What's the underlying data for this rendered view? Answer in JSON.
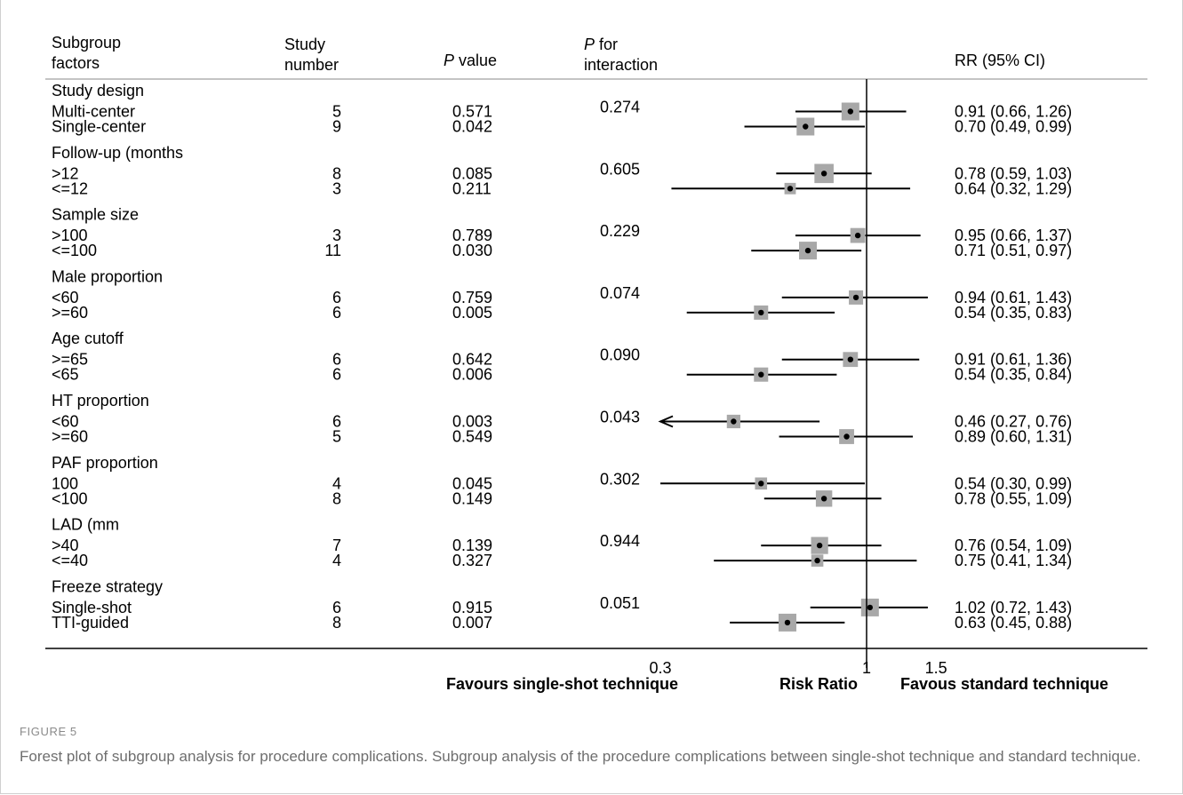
{
  "headers": {
    "factors_line1": "Subgroup",
    "factors_line2": "factors",
    "study_line1": "Study",
    "study_line2": "number",
    "pvalue_italic": "P",
    "pvalue_rest": " value",
    "pint_italic": "P",
    "pint_rest": " for",
    "pint_line2": "interaction",
    "rr": "RR (95% CI)"
  },
  "chart_data": {
    "type": "forest",
    "x_scale": "log",
    "reference_line": 1,
    "xticks": [
      {
        "value": 0.3,
        "label": "0.3"
      },
      {
        "value": 1,
        "label": "1"
      },
      {
        "value": 1.5,
        "label": "1.5"
      }
    ],
    "xlabel": "Risk Ratio",
    "favours_left": "Favours single-shot technique",
    "favours_right": "Favous standard technique",
    "groups": [
      {
        "name": "Study design",
        "p_interaction": "0.274",
        "rows": [
          {
            "label": "Multi-center",
            "n": "5",
            "p": "0.571",
            "rr": 0.91,
            "lo": 0.66,
            "hi": 1.26,
            "text": "0.91 (0.66, 1.26)",
            "weight": 0.75
          },
          {
            "label": "Single-center",
            "n": "9",
            "p": "0.042",
            "rr": 0.7,
            "lo": 0.49,
            "hi": 0.99,
            "text": "0.70 (0.49, 0.99)",
            "weight": 0.75
          }
        ]
      },
      {
        "name": "Follow-up (months",
        "p_interaction": "0.605",
        "rows": [
          {
            "label": ">12",
            "n": "8",
            "p": "0.085",
            "rr": 0.78,
            "lo": 0.59,
            "hi": 1.03,
            "text": "0.78 (0.59, 1.03)",
            "weight": 0.85
          },
          {
            "label": "<=12",
            "n": "3",
            "p": "0.211",
            "rr": 0.64,
            "lo": 0.32,
            "hi": 1.29,
            "text": "0.64 (0.32, 1.29)",
            "weight": 0.3
          }
        ]
      },
      {
        "name": "Sample size",
        "p_interaction": "0.229",
        "rows": [
          {
            "label": ">100",
            "n": "3",
            "p": "0.789",
            "rr": 0.95,
            "lo": 0.66,
            "hi": 1.37,
            "text": "0.95 (0.66, 1.37)",
            "weight": 0.55
          },
          {
            "label": "<=100",
            "n": "11",
            "p": "0.030",
            "rr": 0.71,
            "lo": 0.51,
            "hi": 0.97,
            "text": "0.71 (0.51, 0.97)",
            "weight": 0.75
          }
        ]
      },
      {
        "name": "Male proportion",
        "p_interaction": "0.074",
        "rows": [
          {
            "label": "<60",
            "n": "6",
            "p": "0.759",
            "rr": 0.94,
            "lo": 0.61,
            "hi": 1.43,
            "text": "0.94 (0.61, 1.43)",
            "weight": 0.5
          },
          {
            "label": ">=60",
            "n": "6",
            "p": "0.005",
            "rr": 0.54,
            "lo": 0.35,
            "hi": 0.83,
            "text": "0.54 (0.35, 0.83)",
            "weight": 0.5
          }
        ]
      },
      {
        "name": "Age cutoff",
        "p_interaction": "0.090",
        "rows": [
          {
            "label": ">=65",
            "n": "6",
            "p": "0.642",
            "rr": 0.91,
            "lo": 0.61,
            "hi": 1.36,
            "text": "0.91 (0.61, 1.36)",
            "weight": 0.55
          },
          {
            "label": "<65",
            "n": "6",
            "p": "0.006",
            "rr": 0.54,
            "lo": 0.35,
            "hi": 0.84,
            "text": "0.54 (0.35, 0.84)",
            "weight": 0.5
          }
        ]
      },
      {
        "name": "HT proportion",
        "p_interaction": "0.043",
        "rows": [
          {
            "label": "<60",
            "n": "6",
            "p": "0.003",
            "rr": 0.46,
            "lo": 0.27,
            "hi": 0.76,
            "text": "0.46 (0.27, 0.76)",
            "weight": 0.45,
            "arrow_left": true
          },
          {
            "label": ">=60",
            "n": "5",
            "p": "0.549",
            "rr": 0.89,
            "lo": 0.6,
            "hi": 1.31,
            "text": "0.89 (0.60, 1.31)",
            "weight": 0.55
          }
        ]
      },
      {
        "name": "PAF proportion",
        "p_interaction": "0.302",
        "rows": [
          {
            "label": "100",
            "n": "4",
            "p": "0.045",
            "rr": 0.54,
            "lo": 0.3,
            "hi": 0.99,
            "text": "0.54 (0.30, 0.99)",
            "weight": 0.35
          },
          {
            "label": "<100",
            "n": "8",
            "p": "0.149",
            "rr": 0.78,
            "lo": 0.55,
            "hi": 1.09,
            "text": "0.78 (0.55, 1.09)",
            "weight": 0.65
          }
        ]
      },
      {
        "name": "LAD (mm",
        "p_interaction": "0.944",
        "rows": [
          {
            "label": ">40",
            "n": "7",
            "p": "0.139",
            "rr": 0.76,
            "lo": 0.54,
            "hi": 1.09,
            "text": "0.76 (0.54, 1.09)",
            "weight": 0.7
          },
          {
            "label": "<=40",
            "n": "4",
            "p": "0.327",
            "rr": 0.75,
            "lo": 0.41,
            "hi": 1.34,
            "text": "0.75 (0.41, 1.34)",
            "weight": 0.35
          }
        ]
      },
      {
        "name": "Freeze strategy",
        "p_interaction": "0.051",
        "rows": [
          {
            "label": "Single-shot",
            "n": "6",
            "p": "0.915",
            "rr": 1.02,
            "lo": 0.72,
            "hi": 1.43,
            "text": "1.02 (0.72, 1.43)",
            "weight": 0.75
          },
          {
            "label": "TTI-guided",
            "n": "8",
            "p": "0.007",
            "rr": 0.63,
            "lo": 0.45,
            "hi": 0.88,
            "text": "0.63 (0.45, 0.88)",
            "weight": 0.75
          }
        ]
      }
    ]
  },
  "caption": {
    "label": "FIGURE 5",
    "text": "Forest plot of subgroup analysis for procedure complications. Subgroup analysis of the procedure complications between single-shot technique and standard technique."
  },
  "colors": {
    "box": "#a8a8a8",
    "ink": "#000000",
    "caption_label": "#8a8a8a",
    "caption_text": "#6e6e6e",
    "header_rule": "#b0b0b0"
  }
}
